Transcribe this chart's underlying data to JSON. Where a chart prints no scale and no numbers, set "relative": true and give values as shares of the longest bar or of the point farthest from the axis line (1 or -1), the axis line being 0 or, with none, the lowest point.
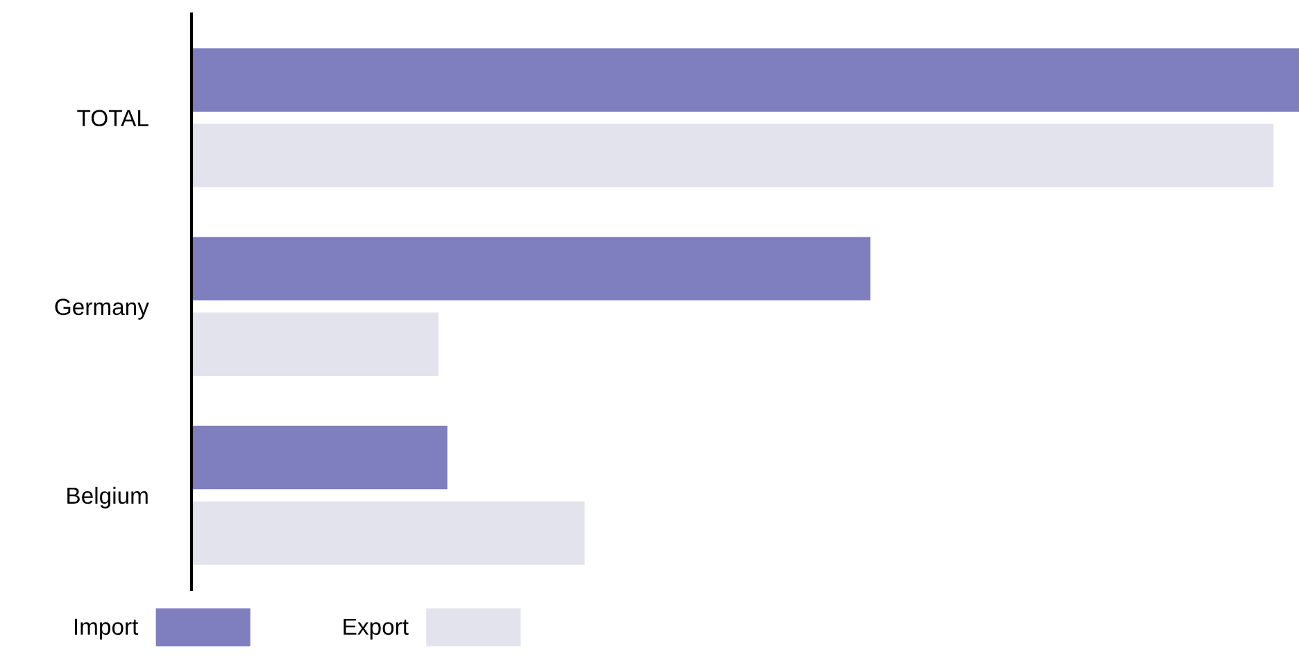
{
  "chart_data": {
    "type": "bar",
    "orientation": "horizontal",
    "relative": true,
    "categories": [
      "TOTAL",
      "Germany",
      "Belgium"
    ],
    "series": [
      {
        "name": "Import",
        "color": "#7f7fbf",
        "values": [
          1,
          0.613,
          0.231
        ]
      },
      {
        "name": "Export",
        "color": "#e3e3ee",
        "values": [
          0.977,
          0.223,
          0.355
        ]
      }
    ],
    "legend": "bottom left",
    "grid": false
  }
}
